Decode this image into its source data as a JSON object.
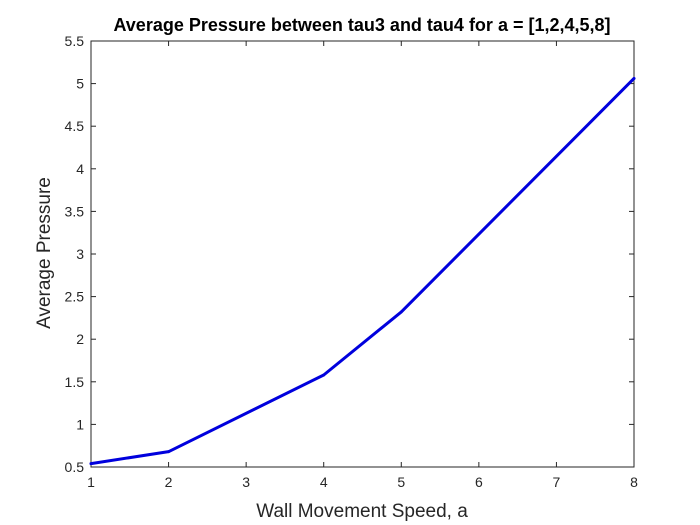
{
  "chart_data": {
    "type": "line",
    "title": "Average Pressure between tau3 and tau4 for a = [1,2,4,5,8]",
    "xlabel": "Wall Movement Speed, a",
    "ylabel": "Average Pressure",
    "xlim": [
      1,
      8
    ],
    "ylim": [
      0.5,
      5.5
    ],
    "xticks": [
      "1",
      "2",
      "3",
      "4",
      "5",
      "6",
      "7",
      "8"
    ],
    "yticks": [
      "0.5",
      "1",
      "1.5",
      "2",
      "2.5",
      "3",
      "3.5",
      "4",
      "4.5",
      "5",
      "5.5"
    ],
    "grid": false,
    "legend": false,
    "series": [
      {
        "color": "#0000dd",
        "x": [
          1,
          2,
          4,
          5,
          8
        ],
        "y": [
          0.54,
          0.68,
          1.58,
          2.32,
          5.06
        ]
      }
    ]
  }
}
